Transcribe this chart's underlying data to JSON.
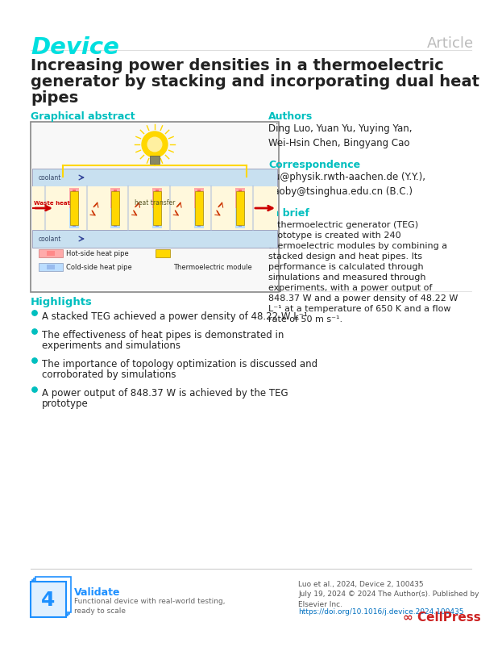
{
  "journal_name": "Device",
  "journal_color": "#00DFDF",
  "article_type": "Article",
  "article_type_color": "#BBBBBB",
  "title_line1": "Increasing power densities in a thermoelectric",
  "title_line2": "generator by stacking and incorporating dual heat",
  "title_line3": "pipes",
  "graphical_abstract_label": "Graphical abstract",
  "authors_label": "Authors",
  "authors_text": "Ding Luo, Yuan Yu, Yuying Yan,\nWei-Hsin Chen, Bingyang Cao",
  "correspondence_label": "Correspondence",
  "correspondence_text": "yu@physik.rwth-aachen.de (Y.Y.),\ncaoby@tsinghua.edu.cn (B.C.)",
  "in_brief_label": "In brief",
  "in_brief_text": "A thermoelectric generator (TEG) prototype is created with 240 thermoelectric modules by combining a stacked design and heat pipes. Its performance is calculated through simulations and measured through experiments, with a power output of 848.37 W and a power density of 48.22 W L⁻¹ at a temperature of 650 K and a flow rate of 50 m s⁻¹.",
  "highlights_label": "Highlights",
  "highlights": [
    "A stacked TEG achieved a power density of 48.22 W L⁻¹",
    "The effectiveness of heat pipes is demonstrated in experiments and simulations",
    "The importance of topology optimization is discussed and corroborated by simulations",
    "A power output of 848.37 W is achieved by the TEG prototype"
  ],
  "section_label_color": "#00BFBF",
  "background_color": "#FFFFFF",
  "text_color": "#222222",
  "footer_text": "Luo et al., 2024, Device 2, 100435\nJuly 19, 2024 © 2024 The Author(s). Published by\nElsevier Inc.",
  "footer_link": "https://doi.org/10.1016/j.device.2024.100435",
  "footer_link_color": "#0070C0",
  "validate_number": "4",
  "validate_label": "Validate",
  "validate_subtext": "Functional device with real-world testing,\nready to scale",
  "validate_color": "#1E90FF",
  "cellpress_color": "#CC2222",
  "border_color": "#888888"
}
